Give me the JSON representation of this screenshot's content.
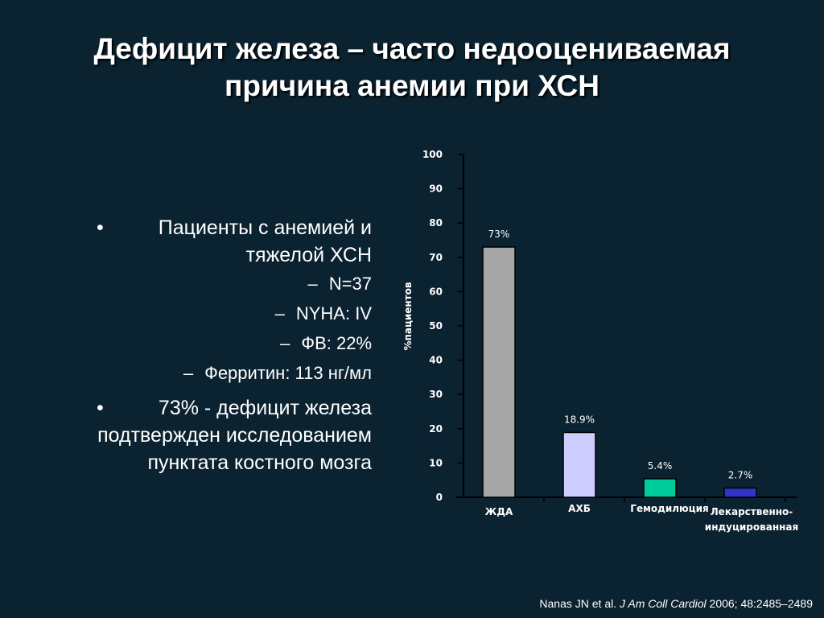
{
  "title": {
    "line1": "Дефицит железа – часто недооцениваемая",
    "line2": "причина анемии при ХСН"
  },
  "bullets": {
    "item1": {
      "line1": "Пациенты с анемией и",
      "line2": "тяжелой ХСН",
      "subs": [
        "N=37",
        "NYHA: IV",
        "ФВ: 22%",
        "Ферритин: 113 нг/мл"
      ]
    },
    "item2": {
      "line1": "73% - дефицит железа",
      "line2": "подтвержден исследованием",
      "line3": "пунктата костного мозга"
    },
    "bullet_char": "•",
    "dash_char": "–"
  },
  "chart_data": {
    "type": "bar",
    "categories": [
      "ЖДА",
      "АХБ",
      "Гемодилюция",
      "Лекарственно-индуцированная"
    ],
    "category_lines": [
      [
        "ЖДА"
      ],
      [
        "АХБ"
      ],
      [
        "Гемодилюция"
      ],
      [
        "Лекарственно-",
        "индуцированная"
      ]
    ],
    "values": [
      73,
      18.9,
      5.4,
      2.7
    ],
    "data_labels": [
      "73%",
      "18.9%",
      "5.4%",
      "2.7%"
    ],
    "colors": [
      "#a6a6a6",
      "#ccccff",
      "#00cc99",
      "#3333cc"
    ],
    "ylabel": "%пациентов",
    "ylim": [
      0,
      100
    ],
    "yticks": [
      0,
      10,
      20,
      30,
      40,
      50,
      60,
      70,
      80,
      90,
      100
    ],
    "grid": false
  },
  "citation": {
    "authors": "Nanas JN et al. ",
    "journal": "J Am Coll Cardiol",
    "details": " 2006; 48:2485–2489"
  }
}
